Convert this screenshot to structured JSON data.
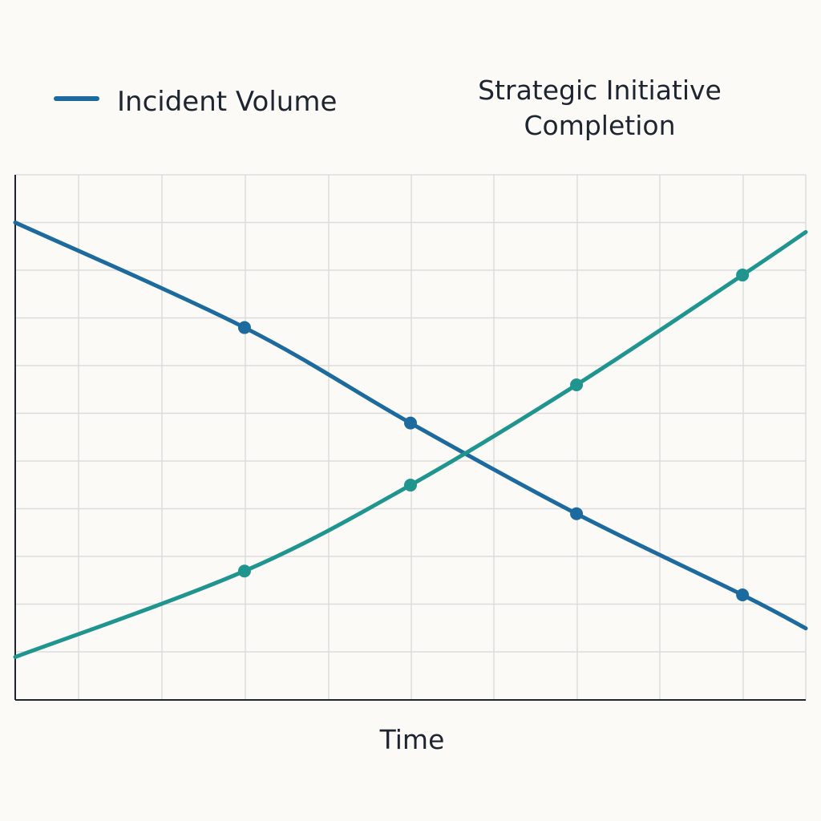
{
  "chart_data": {
    "type": "line",
    "title": "",
    "xlabel": "Time",
    "ylabel": "",
    "xlim": [
      0,
      10
    ],
    "ylim": [
      0,
      11
    ],
    "grid": true,
    "legend": {
      "placement": "top",
      "entries": [
        "Incident Volume",
        "Strategic Initiative Completion"
      ]
    },
    "series": [
      {
        "name": "Incident Volume",
        "color": "#1d6b9e",
        "x": [
          0,
          2.9,
          5,
          7.1,
          9.2,
          10
        ],
        "y": [
          10,
          7.8,
          5.8,
          3.9,
          2.2,
          1.5
        ],
        "markers_at": [
          2.9,
          5,
          7.1,
          9.2
        ]
      },
      {
        "name": "Strategic Initiative Completion",
        "color": "#20958f",
        "x": [
          0,
          2.9,
          5,
          7.1,
          9.2,
          10
        ],
        "y": [
          0.9,
          2.7,
          4.5,
          6.6,
          8.9,
          9.8
        ],
        "markers_at": [
          2.9,
          5,
          7.1,
          9.2
        ]
      }
    ]
  }
}
